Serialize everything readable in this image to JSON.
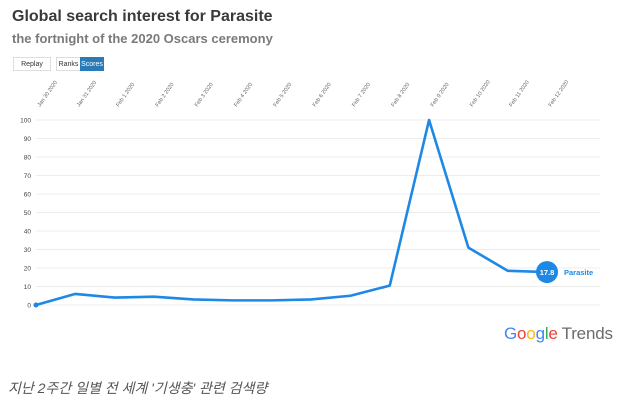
{
  "header": {
    "title": "Global search interest for Parasite",
    "subtitle": "the fortnight of the 2020 Oscars ceremony"
  },
  "controls": {
    "replay_label": "Replay",
    "ranks_label": "Ranks",
    "scores_label": "Scores",
    "active": "Scores"
  },
  "logo": {
    "brand": "Google",
    "product": "Trends"
  },
  "caption": "지난 2주간 일별 전 세계 '기생충' 관련 검색량",
  "colors": {
    "line": "#1e88e5",
    "end_bubble": "#1e88e5",
    "active_button": "#2a7ab8"
  },
  "chart_data": {
    "type": "line",
    "title": "Global search interest for Parasite",
    "subtitle": "the fortnight of the 2020 Oscars ceremony",
    "xlabel": "",
    "ylabel": "",
    "categories": [
      "Jan 30 2020",
      "Jan 31 2020",
      "Feb 1 2020",
      "Feb 2 2020",
      "Feb 3 2020",
      "Feb 4 2020",
      "Feb 5 2020",
      "Feb 6 2020",
      "Feb 7 2020",
      "Feb 8 2020",
      "Feb 9 2020",
      "Feb 10 2020",
      "Feb 11 2020",
      "Feb 12 2020"
    ],
    "y_ticks": [
      0,
      10,
      20,
      30,
      40,
      50,
      60,
      70,
      80,
      90,
      100
    ],
    "ylim": [
      0,
      100
    ],
    "grid": "horizontal",
    "series": [
      {
        "name": "Parasite",
        "values": [
          0,
          6,
          4,
          4.5,
          3,
          2.5,
          2.5,
          3,
          5,
          10.5,
          100,
          31,
          18.5,
          17.8
        ],
        "end_label": "17.8"
      }
    ]
  }
}
